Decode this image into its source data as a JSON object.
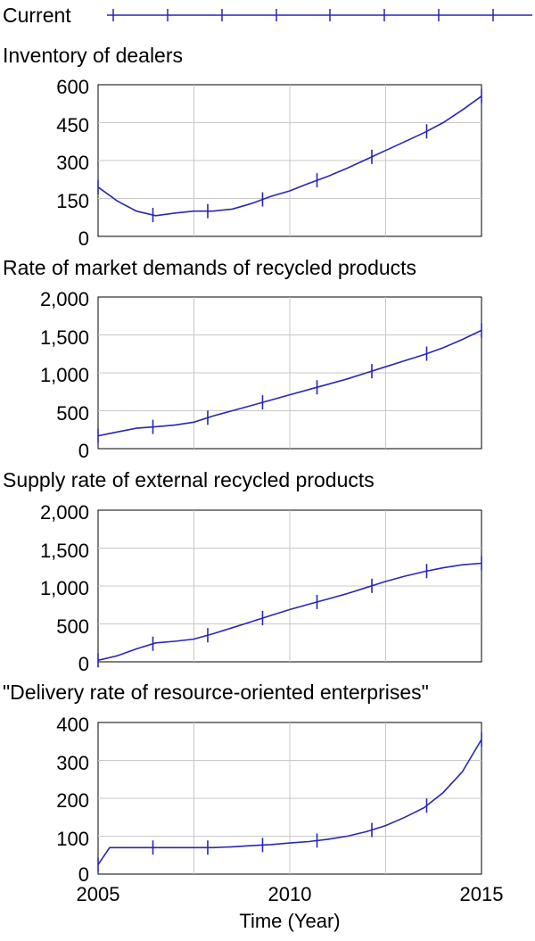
{
  "legend": {
    "label": "Current",
    "color": "#2727b3"
  },
  "chart_data": [
    {
      "type": "line",
      "title": "Inventory of dealers",
      "ylim": [
        0,
        600
      ],
      "yticks": [
        "600",
        "450",
        "300",
        "150",
        "0"
      ],
      "series": [
        {
          "name": "Current",
          "color": "#2727b3",
          "x": [
            2005,
            2005.5,
            2006,
            2006.5,
            2007,
            2007.5,
            2008,
            2008.5,
            2009,
            2009.5,
            2010,
            2010.5,
            2011,
            2011.5,
            2012,
            2012.5,
            2013,
            2013.5,
            2014,
            2014.5,
            2015
          ],
          "y": [
            195,
            140,
            100,
            82,
            92,
            100,
            100,
            108,
            130,
            158,
            180,
            210,
            238,
            270,
            305,
            340,
            375,
            410,
            450,
            500,
            555
          ]
        }
      ]
    },
    {
      "type": "line",
      "title": "Rate of market demands of recycled products",
      "ylim": [
        0,
        2000
      ],
      "yticks": [
        "2,000",
        "1,500",
        "1,000",
        "500",
        "0"
      ],
      "series": [
        {
          "name": "Current",
          "color": "#2727b3",
          "x": [
            2005,
            2005.5,
            2006,
            2006.5,
            2007,
            2007.5,
            2008,
            2008.5,
            2009,
            2009.5,
            2010,
            2010.5,
            2011,
            2011.5,
            2012,
            2012.5,
            2013,
            2013.5,
            2014,
            2014.5,
            2015
          ],
          "y": [
            170,
            220,
            270,
            290,
            310,
            350,
            430,
            500,
            570,
            640,
            710,
            780,
            850,
            920,
            1000,
            1080,
            1160,
            1240,
            1330,
            1440,
            1560
          ]
        }
      ]
    },
    {
      "type": "line",
      "title": "Supply rate of external recycled products",
      "ylim": [
        0,
        2000
      ],
      "yticks": [
        "2,000",
        "1,500",
        "1,000",
        "500",
        "0"
      ],
      "series": [
        {
          "name": "Current",
          "color": "#2727b3",
          "x": [
            2005,
            2005.5,
            2006,
            2006.5,
            2007,
            2007.5,
            2008,
            2008.5,
            2009,
            2009.5,
            2010,
            2010.5,
            2011,
            2011.5,
            2012,
            2012.5,
            2013,
            2013.5,
            2014,
            2014.5,
            2015
          ],
          "y": [
            20,
            80,
            170,
            250,
            270,
            300,
            370,
            450,
            530,
            610,
            690,
            760,
            830,
            900,
            980,
            1060,
            1130,
            1190,
            1240,
            1280,
            1300
          ]
        }
      ]
    },
    {
      "type": "line",
      "title": "\"Delivery rate of resource-oriented enterprises\"",
      "ylim": [
        0,
        400
      ],
      "yticks": [
        "400",
        "300",
        "200",
        "100",
        "0"
      ],
      "xlabel": "Time (Year)",
      "xticks": [
        "2005",
        "2010",
        "2015"
      ],
      "series": [
        {
          "name": "Current",
          "color": "#2727b3",
          "x": [
            2005,
            2005.3,
            2006,
            2006.5,
            2007,
            2007.5,
            2008,
            2008.5,
            2009,
            2009.5,
            2010,
            2010.5,
            2011,
            2011.5,
            2012,
            2012.5,
            2013,
            2013.5,
            2014,
            2014.5,
            2015
          ],
          "y": [
            25,
            70,
            70,
            70,
            70,
            70,
            70,
            72,
            75,
            78,
            82,
            86,
            92,
            100,
            112,
            128,
            150,
            175,
            215,
            270,
            355
          ]
        }
      ]
    }
  ]
}
